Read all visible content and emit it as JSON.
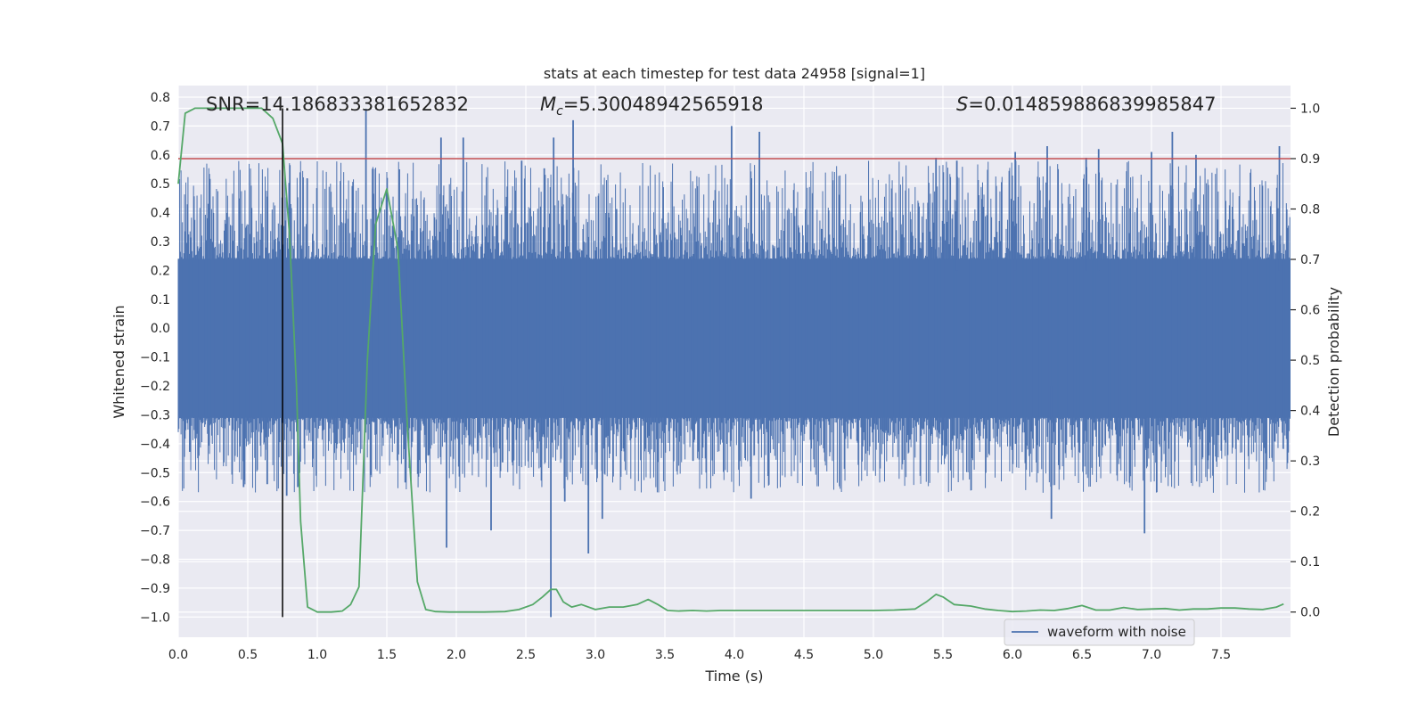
{
  "chart_data": {
    "type": "line",
    "title": "stats at each timestep for test data 24958 [signal=1]",
    "xlabel": "Time (s)",
    "ylabel_left": "Whitened strain",
    "ylabel_right": "Detection probability",
    "xlim": [
      0.0,
      8.0
    ],
    "ylim_left": [
      -1.07,
      0.84
    ],
    "ylim_right": [
      -0.05,
      1.045
    ],
    "x_ticks": [
      "0.0",
      "0.5",
      "1.0",
      "1.5",
      "2.0",
      "2.5",
      "3.0",
      "3.5",
      "4.0",
      "4.5",
      "5.0",
      "5.5",
      "6.0",
      "6.5",
      "7.0",
      "7.5"
    ],
    "y_ticks_left": [
      "0.8",
      "0.7",
      "0.6",
      "0.5",
      "0.4",
      "0.3",
      "0.2",
      "0.1",
      "0.0",
      "−0.1",
      "−0.2",
      "−0.3",
      "−0.4",
      "−0.5",
      "−0.6",
      "−0.7",
      "−0.8",
      "−0.9",
      "−1.0"
    ],
    "y_ticks_right": [
      "1.0",
      "0.9",
      "0.8",
      "0.7",
      "0.6",
      "0.5",
      "0.4",
      "0.3",
      "0.2",
      "0.1",
      "0.0"
    ],
    "annotations": {
      "snr": "SNR=14.186833381652832",
      "mc_symbol": "M",
      "mc_sub": "c",
      "mc_value": "=5.30048942565918",
      "s_symbol": "S",
      "s_value": "=0.014859886839985847"
    },
    "legend": {
      "label": "waveform with noise",
      "placement": "lower-right"
    },
    "grid": true,
    "colors": {
      "background": "#eaeaf2",
      "grid": "#ffffff",
      "waveform": "#4c72b0",
      "probability": "#55a868",
      "threshold": "#c44e52",
      "marker": "#000000",
      "text": "#262626"
    },
    "threshold_line": {
      "axis": "right",
      "value": 0.9
    },
    "event_marker_x": 0.75,
    "series": [
      {
        "name": "waveform with noise",
        "axis": "left",
        "kind": "dense-noise",
        "core_band": [
          -0.31,
          0.24
        ],
        "spike_peaks": [
          {
            "x": 0.47,
            "y": -0.55
          },
          {
            "x": 0.64,
            "y": -0.54
          },
          {
            "x": 0.78,
            "y": -0.58
          },
          {
            "x": 0.86,
            "y": -0.55
          },
          {
            "x": 1.35,
            "y": 0.76
          },
          {
            "x": 1.59,
            "y": 0.55
          },
          {
            "x": 1.89,
            "y": 0.66
          },
          {
            "x": 1.93,
            "y": -0.76
          },
          {
            "x": 2.05,
            "y": 0.66
          },
          {
            "x": 2.25,
            "y": -0.7
          },
          {
            "x": 2.47,
            "y": 0.58
          },
          {
            "x": 2.68,
            "y": -1.0
          },
          {
            "x": 2.7,
            "y": 0.66
          },
          {
            "x": 2.78,
            "y": -0.6
          },
          {
            "x": 2.84,
            "y": 0.72
          },
          {
            "x": 2.95,
            "y": -0.78
          },
          {
            "x": 3.05,
            "y": -0.66
          },
          {
            "x": 3.98,
            "y": 0.7
          },
          {
            "x": 4.12,
            "y": -0.59
          },
          {
            "x": 4.18,
            "y": 0.68
          },
          {
            "x": 5.45,
            "y": 0.59
          },
          {
            "x": 5.6,
            "y": 0.58
          },
          {
            "x": 6.02,
            "y": 0.61
          },
          {
            "x": 6.25,
            "y": 0.63
          },
          {
            "x": 6.28,
            "y": -0.66
          },
          {
            "x": 6.53,
            "y": 0.59
          },
          {
            "x": 6.62,
            "y": 0.62
          },
          {
            "x": 6.95,
            "y": -0.71
          },
          {
            "x": 7.0,
            "y": 0.61
          },
          {
            "x": 7.15,
            "y": 0.68
          },
          {
            "x": 7.32,
            "y": 0.6
          },
          {
            "x": 7.92,
            "y": 0.63
          }
        ]
      },
      {
        "axis": "right",
        "x": [
          0.0,
          0.05,
          0.12,
          0.2,
          0.3,
          0.4,
          0.5,
          0.6,
          0.64,
          0.68,
          0.75,
          0.8,
          0.85,
          0.88,
          0.93,
          1.0,
          1.05,
          1.1,
          1.18,
          1.24,
          1.3,
          1.36,
          1.42,
          1.5,
          1.58,
          1.65,
          1.72,
          1.78,
          1.85,
          1.95,
          2.05,
          2.2,
          2.35,
          2.45,
          2.55,
          2.62,
          2.68,
          2.72,
          2.77,
          2.83,
          2.9,
          3.0,
          3.1,
          3.2,
          3.3,
          3.38,
          3.45,
          3.52,
          3.6,
          3.7,
          3.8,
          3.9,
          4.0,
          4.2,
          4.4,
          4.6,
          4.8,
          5.0,
          5.15,
          5.3,
          5.38,
          5.45,
          5.5,
          5.58,
          5.7,
          5.8,
          5.9,
          6.0,
          6.1,
          6.2,
          6.3,
          6.4,
          6.5,
          6.6,
          6.7,
          6.8,
          6.9,
          7.0,
          7.1,
          7.2,
          7.3,
          7.4,
          7.5,
          7.6,
          7.7,
          7.8,
          7.9,
          7.95
        ],
        "y": [
          0.85,
          0.99,
          1.0,
          1.0,
          1.0,
          1.0,
          1.0,
          1.0,
          0.99,
          0.98,
          0.93,
          0.75,
          0.45,
          0.18,
          0.01,
          0.0,
          0.0,
          0.0,
          0.002,
          0.015,
          0.05,
          0.5,
          0.77,
          0.84,
          0.72,
          0.36,
          0.06,
          0.005,
          0.001,
          0.0,
          0.0,
          0.0,
          0.001,
          0.005,
          0.015,
          0.03,
          0.045,
          0.045,
          0.02,
          0.01,
          0.015,
          0.005,
          0.01,
          0.01,
          0.015,
          0.025,
          0.015,
          0.003,
          0.002,
          0.003,
          0.002,
          0.003,
          0.003,
          0.003,
          0.003,
          0.003,
          0.003,
          0.003,
          0.004,
          0.006,
          0.02,
          0.035,
          0.03,
          0.015,
          0.012,
          0.006,
          0.003,
          0.001,
          0.002,
          0.004,
          0.003,
          0.007,
          0.013,
          0.004,
          0.004,
          0.009,
          0.005,
          0.006,
          0.007,
          0.004,
          0.006,
          0.006,
          0.008,
          0.008,
          0.006,
          0.005,
          0.01,
          0.016
        ]
      }
    ]
  }
}
